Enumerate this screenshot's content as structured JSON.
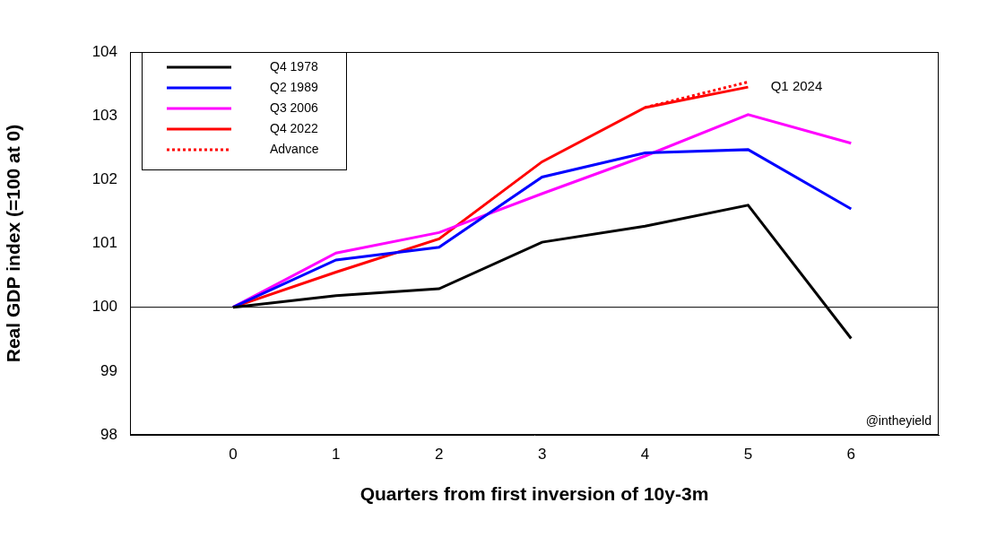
{
  "chart_data": {
    "type": "line",
    "x_label": "Quarters from first inversion of 10y-3m",
    "y_label": "Real GDP index (=100 at 0)",
    "x": [
      0,
      1,
      2,
      3,
      4,
      5,
      6
    ],
    "xlim": [
      -1,
      6.85
    ],
    "xticks": [
      0,
      1,
      2,
      3,
      4,
      5,
      6
    ],
    "ylim": [
      98,
      104
    ],
    "yticks": [
      98,
      99,
      100,
      101,
      102,
      103,
      104
    ],
    "grid": false,
    "legend": "upper left",
    "reference_line": 100,
    "series": [
      {
        "name": "Q4 1978",
        "color": "#000000",
        "line_style": "solid",
        "values": [
          100,
          100.18,
          100.29,
          101.02,
          101.27,
          101.6,
          99.51
        ]
      },
      {
        "name": "Q2 1989",
        "color": "#0000ff",
        "line_style": "solid",
        "values": [
          100,
          100.74,
          100.94,
          102.04,
          102.42,
          102.47,
          101.54
        ]
      },
      {
        "name": "Q3 2006",
        "color": "#ff00ff",
        "line_style": "solid",
        "values": [
          100,
          100.85,
          101.17,
          101.78,
          102.37,
          103.02,
          102.57
        ]
      },
      {
        "name": "Q4 2022",
        "color": "#ff0000",
        "line_style": "solid",
        "values": [
          100,
          100.55,
          101.07,
          102.28,
          103.13,
          103.45,
          null
        ]
      },
      {
        "name": "Advance",
        "color": "#ff0000",
        "line_style": "dotted",
        "values": [
          null,
          null,
          null,
          null,
          103.13,
          103.53,
          null
        ]
      }
    ],
    "annotations": [
      {
        "text": "Q1 2024",
        "x": 5.22,
        "y": 103.45
      }
    ],
    "source": "@intheyield"
  }
}
